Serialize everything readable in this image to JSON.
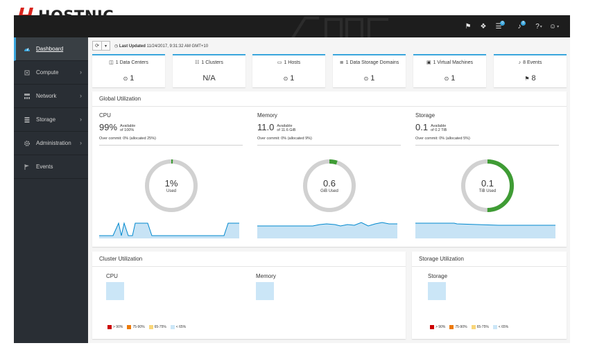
{
  "brand": {
    "name": "HOSTNIC",
    "mark_color": "#d9231c"
  },
  "topbar": {
    "icons": [
      {
        "name": "bookmark-icon",
        "glyph": "⚑",
        "badge": ""
      },
      {
        "name": "tags-icon",
        "glyph": "❖",
        "badge": ""
      },
      {
        "name": "tasks-icon",
        "glyph": "☰",
        "badge": "0"
      },
      {
        "name": "bell-icon",
        "glyph": "♪",
        "badge": "8"
      },
      {
        "name": "help-icon",
        "glyph": "?",
        "badge": ""
      },
      {
        "name": "user-icon",
        "glyph": "☺",
        "badge": ""
      }
    ]
  },
  "sidebar": {
    "items": [
      {
        "name": "dashboard",
        "label": "Dashboard",
        "active": true,
        "chevron": false
      },
      {
        "name": "compute",
        "label": "Compute",
        "active": false,
        "chevron": true
      },
      {
        "name": "network",
        "label": "Network",
        "active": false,
        "chevron": true
      },
      {
        "name": "storage",
        "label": "Storage",
        "active": false,
        "chevron": true
      },
      {
        "name": "administration",
        "label": "Administration",
        "active": false,
        "chevron": true
      },
      {
        "name": "events",
        "label": "Events",
        "active": false,
        "chevron": false
      }
    ]
  },
  "toolbar": {
    "last_updated_label": "Last Updated",
    "last_updated_value": "11/24/2017, 9:31:32 AM GMT+10"
  },
  "cards": [
    {
      "name": "data-centers",
      "title": "1 Data Centers",
      "value": "1",
      "icon": "◫",
      "value_icon": "⊙"
    },
    {
      "name": "clusters",
      "title": "1 Clusters",
      "value": "N/A",
      "icon": "☷",
      "value_icon": ""
    },
    {
      "name": "hosts",
      "title": "1 Hosts",
      "value": "1",
      "icon": "▭",
      "value_icon": "⊙"
    },
    {
      "name": "data-storage-domains",
      "title": "1 Data Storage Domains",
      "value": "1",
      "icon": "≣",
      "value_icon": "⊙"
    },
    {
      "name": "virtual-machines",
      "title": "1 Virtual Machines",
      "value": "1",
      "icon": "▣",
      "value_icon": "⊙"
    },
    {
      "name": "events",
      "title": "8 Events",
      "value": "8",
      "icon": "♪",
      "value_icon": "⚑"
    }
  ],
  "global_utilization": {
    "title": "Global Utilization",
    "columns": [
      {
        "name": "cpu",
        "label": "CPU",
        "big": "99%",
        "avail1": "Available",
        "avail2": "of 100%",
        "overcommit": "Over commit: 0% (allocated 25%)",
        "donut_value": "1%",
        "donut_unit": "Used",
        "used_fraction": 0.01
      },
      {
        "name": "memory",
        "label": "Memory",
        "big": "11.0",
        "avail1": "Available",
        "avail2": "of 11.6 GiB",
        "overcommit": "Over commit: 0% (allocated 9%)",
        "donut_value": "0.6",
        "donut_unit": "GiB Used",
        "used_fraction": 0.05
      },
      {
        "name": "storage",
        "label": "Storage",
        "big": "0.1",
        "avail1": "Available",
        "avail2": "of 0.2 TiB",
        "overcommit": "Over commit: 0% (allocated 5%)",
        "donut_value": "0.1",
        "donut_unit": "TiB Used",
        "used_fraction": 0.5
      }
    ],
    "colors": {
      "track": "#d1d1d1",
      "used": "#3f9c35",
      "spark_line": "#0088ce",
      "spark_fill": "#c7e3f5"
    }
  },
  "cluster_utilization": {
    "title": "Cluster Utilization",
    "cpu_label": "CPU",
    "memory_label": "Memory"
  },
  "storage_utilization": {
    "title": "Storage Utilization",
    "storage_label": "Storage"
  },
  "legend": [
    {
      "label": "> 90%",
      "color": "#cc0000"
    },
    {
      "label": "75-90%",
      "color": "#ec7a08"
    },
    {
      "label": "65-75%",
      "color": "#f9d67a"
    },
    {
      "label": "< 65%",
      "color": "#cbe6f7"
    }
  ]
}
